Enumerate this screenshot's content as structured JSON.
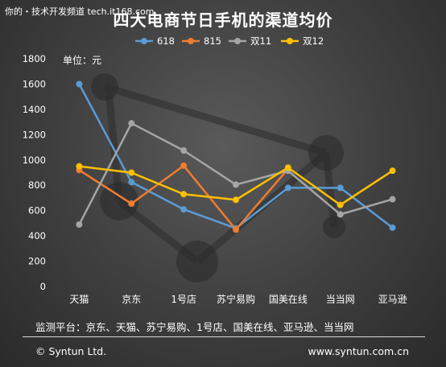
{
  "watermark": "你的・技术开发频道 tech.it168.com",
  "footer": {
    "note": "监测平台：京东、天猫、苏宁易购、1号店、国美在线、亚马逊、当当网",
    "copyright": "© Syntun Ltd.",
    "website": "www.syntun.com.cn"
  },
  "chart_data": {
    "type": "line",
    "title": "四大电商节日手机的渠道均价",
    "ylabel": "单位：元",
    "xlabel": "",
    "categories": [
      "天猫",
      "京东",
      "1号店",
      "苏宁易购",
      "国美在线",
      "当当网",
      "亚马逊"
    ],
    "ylim": [
      0,
      1800
    ],
    "yticks": [
      0,
      200,
      400,
      600,
      800,
      1000,
      1200,
      1400,
      1600,
      1800
    ],
    "grid": false,
    "legend_position": "top",
    "series": [
      {
        "name": "618",
        "color": "#5b9bd5",
        "values": [
          1600,
          825,
          610,
          460,
          780,
          780,
          465
        ]
      },
      {
        "name": "815",
        "color": "#ed7d31",
        "values": [
          920,
          655,
          955,
          450,
          930,
          null,
          null
        ]
      },
      {
        "name": "双11",
        "color": "#a5a5a5",
        "values": [
          490,
          1290,
          1075,
          805,
          915,
          570,
          690
        ]
      },
      {
        "name": "双12",
        "color": "#ffc000",
        "values": [
          950,
          900,
          730,
          685,
          940,
          645,
          915
        ]
      }
    ]
  }
}
